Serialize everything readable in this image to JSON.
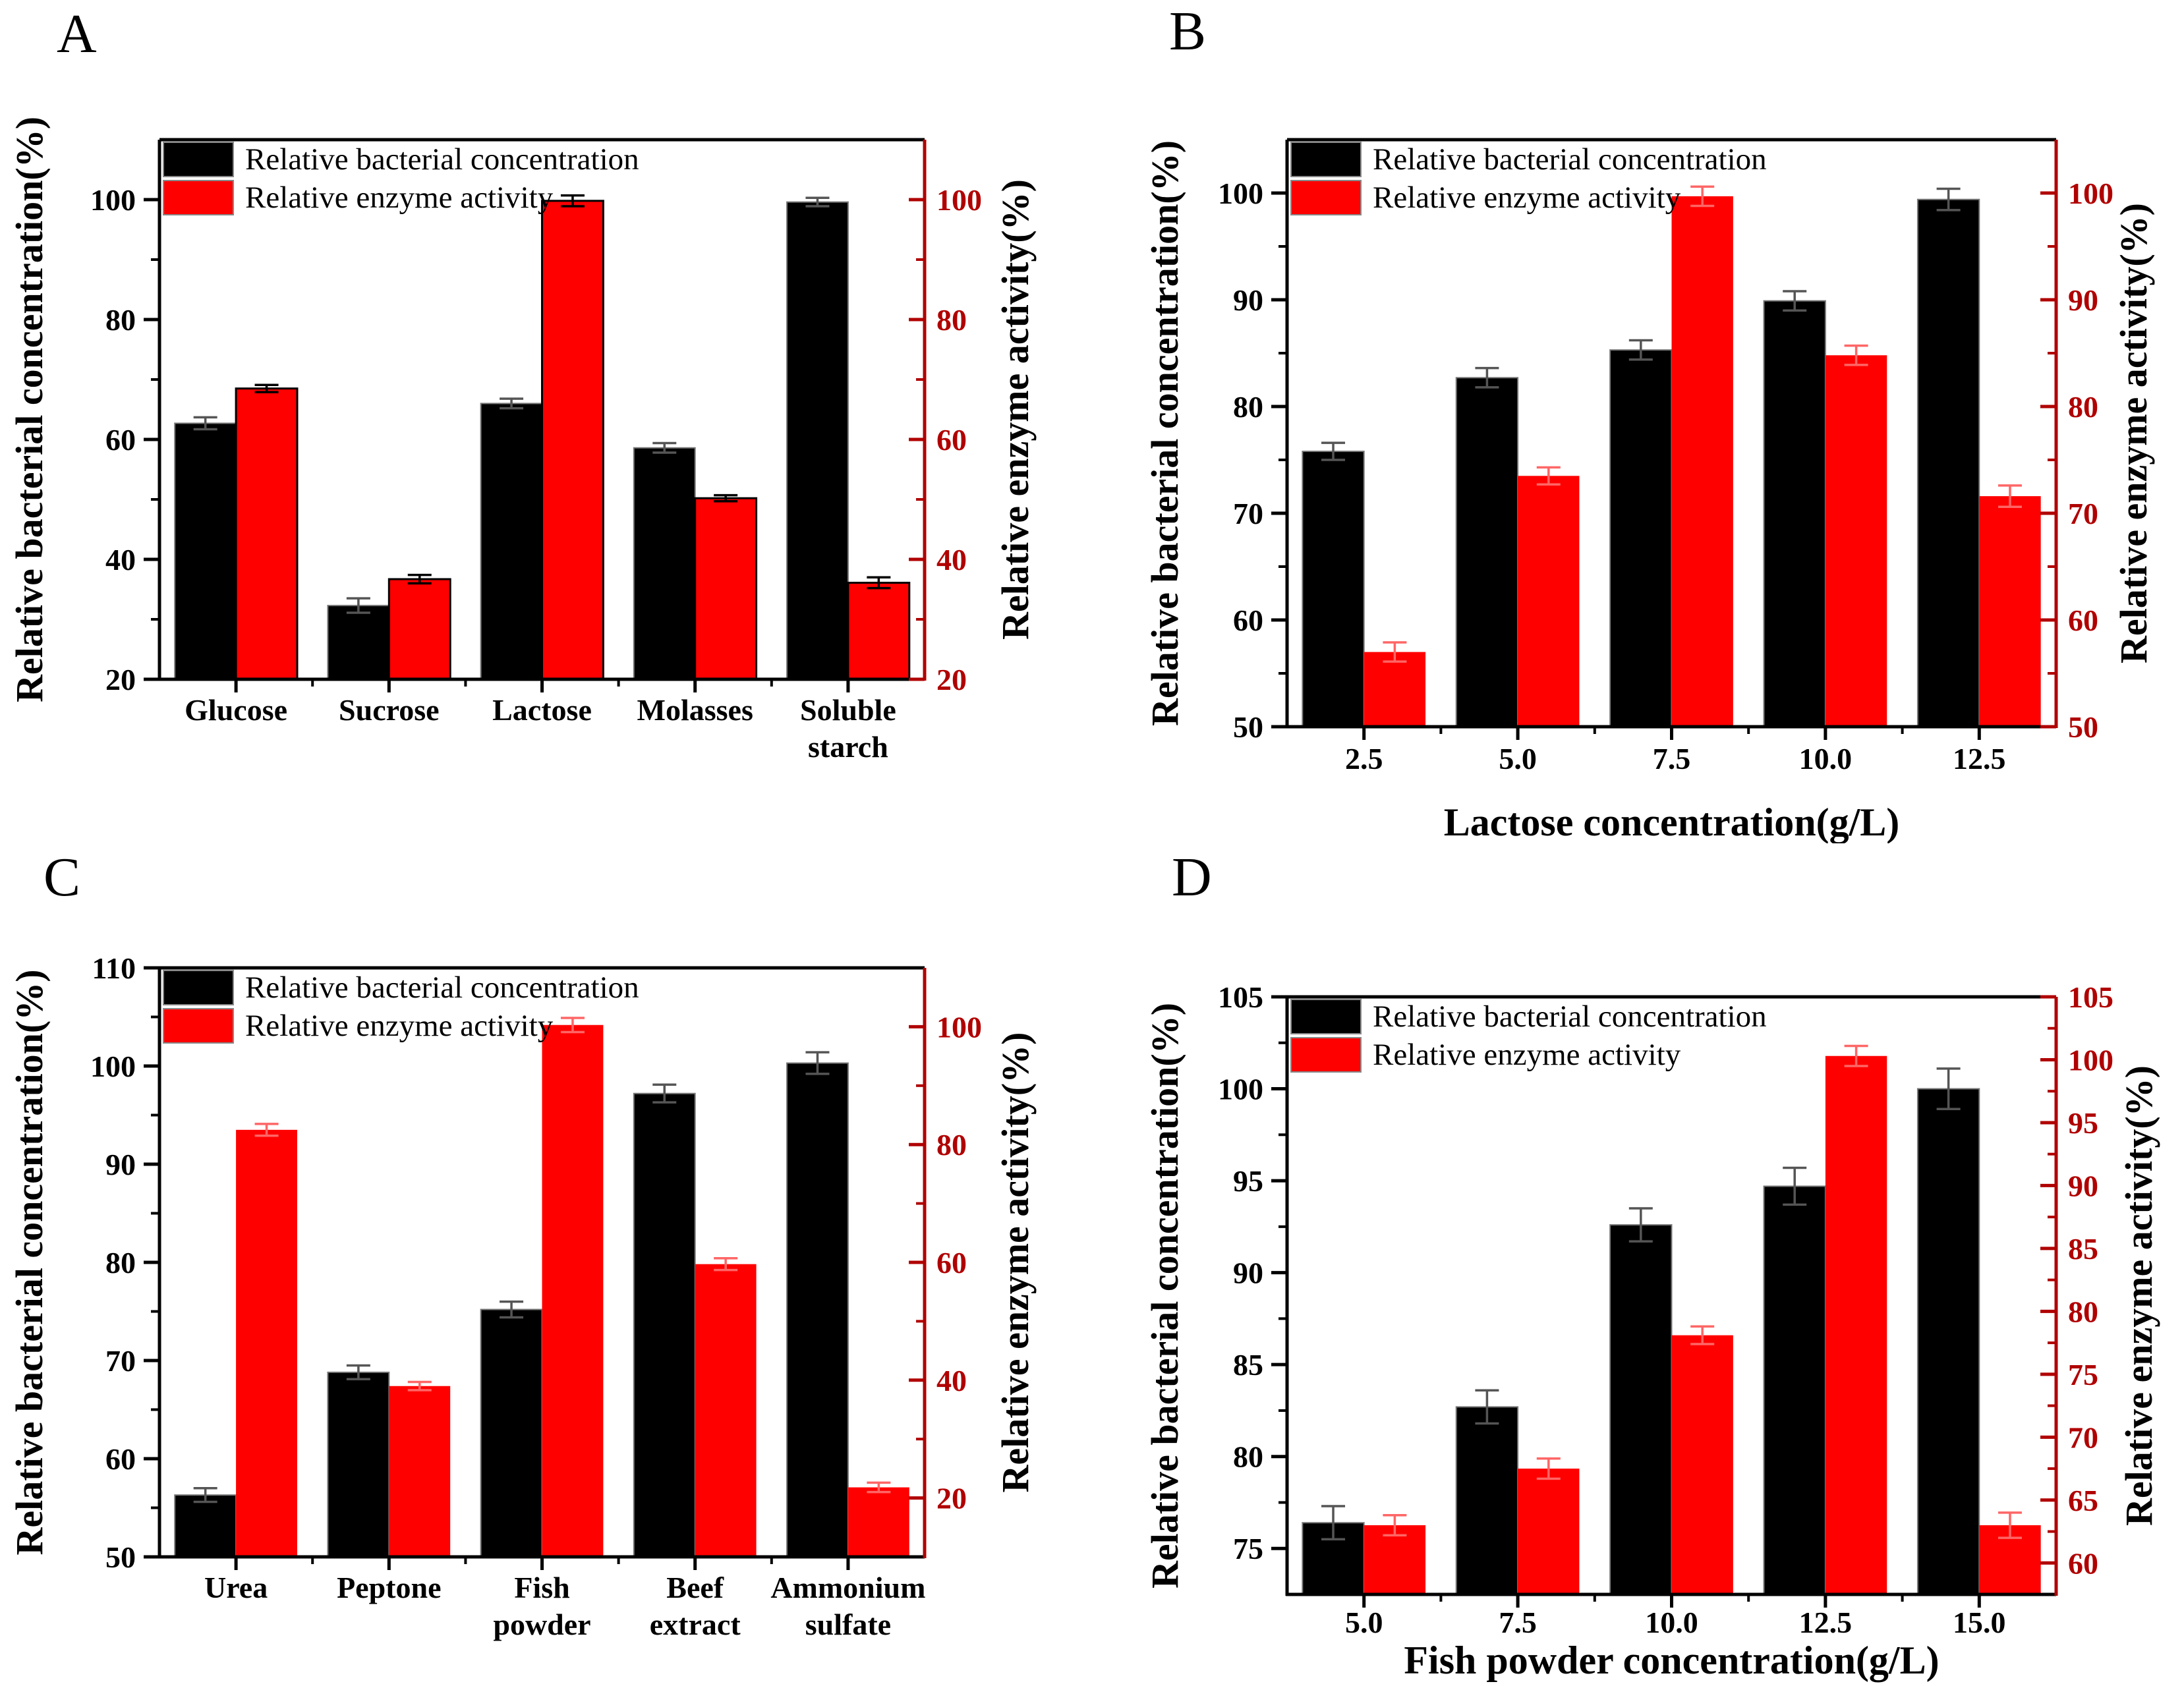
{
  "figure_background": "#ffffff",
  "chart_data": [
    {
      "panel": "A",
      "type": "bar",
      "categories": [
        "Glucose",
        "Sucrose",
        "Lactose",
        "Molasses",
        "Soluble\nstarch"
      ],
      "x_axis": {
        "label": ""
      },
      "left_axis": {
        "label": "Relative bacterial concentration(%)",
        "min": 20,
        "max": 110,
        "major_ticks": [
          20,
          40,
          60,
          80,
          100
        ],
        "minor_step": 10,
        "color": "#000000"
      },
      "right_axis": {
        "label": "Relative enzyme activity(%)",
        "min": 20,
        "max": 110,
        "major_ticks": [
          20,
          40,
          60,
          80,
          100
        ],
        "minor_step": 10,
        "color": "#b00000"
      },
      "series": [
        {
          "name": "Relative bacterial concentration",
          "axis": "left",
          "color": "#000000",
          "values": [
            62.7,
            32.3,
            66.0,
            58.6,
            99.6
          ],
          "errors": [
            1.0,
            1.2,
            0.8,
            0.8,
            0.7
          ]
        },
        {
          "name": "Relative enzyme activity",
          "axis": "right",
          "color": "#ff0000",
          "values": [
            68.5,
            36.7,
            99.8,
            50.2,
            36.1
          ],
          "errors": [
            0.6,
            0.7,
            0.9,
            0.5,
            0.9
          ]
        }
      ],
      "legend": [
        "Relative bacterial concentration",
        "Relative enzyme activity"
      ],
      "style": {
        "black_error_color": "#555555",
        "red_error_color": "#000000",
        "red_bar_border": "#000000"
      }
    },
    {
      "panel": "B",
      "type": "bar",
      "categories": [
        "2.5",
        "5.0",
        "7.5",
        "10.0",
        "12.5"
      ],
      "x_axis": {
        "label": "Lactose concentration(g/L)"
      },
      "left_axis": {
        "label": "Relative bacterial concentration(%)",
        "min": 50,
        "max": 105,
        "major_ticks": [
          50,
          60,
          70,
          80,
          90,
          100
        ],
        "minor_step": 5,
        "color": "#000000"
      },
      "right_axis": {
        "label": "Relative enzyme activity(%)",
        "min": 50,
        "max": 105,
        "major_ticks": [
          50,
          60,
          70,
          80,
          90,
          100
        ],
        "minor_step": 5,
        "color": "#b00000"
      },
      "series": [
        {
          "name": "Relative bacterial concentration",
          "axis": "left",
          "color": "#000000",
          "values": [
            75.8,
            82.7,
            85.3,
            89.9,
            99.4
          ],
          "errors": [
            0.8,
            0.9,
            0.9,
            0.9,
            1.0
          ]
        },
        {
          "name": "Relative enzyme activity",
          "axis": "right",
          "color": "#ff0000",
          "values": [
            57.0,
            73.5,
            99.7,
            84.8,
            71.6
          ],
          "errors": [
            0.9,
            0.8,
            0.9,
            0.9,
            1.0
          ]
        }
      ],
      "legend": [
        "Relative bacterial concentration",
        "Relative enzyme activity"
      ],
      "style": {
        "black_error_color": "#555555",
        "red_error_color": "#ff6666",
        "red_bar_border": null
      }
    },
    {
      "panel": "C",
      "type": "bar",
      "categories": [
        "Urea",
        "Peptone",
        "Fish\npowder",
        "Beef\nextract",
        "Ammonium\nsulfate"
      ],
      "x_axis": {
        "label": ""
      },
      "left_axis": {
        "label": "Relative bacterial concentration(%)",
        "min": 50,
        "max": 110,
        "major_ticks": [
          50,
          60,
          70,
          80,
          90,
          100,
          110
        ],
        "minor_step": 5,
        "color": "#000000"
      },
      "right_axis": {
        "label": "Relative enzyme activity(%)",
        "min": 10,
        "max": 110,
        "major_ticks": [
          20,
          40,
          60,
          80,
          100
        ],
        "minor_step": 10,
        "color": "#b00000"
      },
      "series": [
        {
          "name": "Relative bacterial concentration",
          "axis": "left",
          "color": "#000000",
          "values": [
            56.3,
            68.8,
            75.2,
            97.2,
            100.3
          ],
          "errors": [
            0.7,
            0.7,
            0.8,
            0.9,
            1.1
          ]
        },
        {
          "name": "Relative enzyme activity",
          "axis": "right",
          "color": "#ff0000",
          "values": [
            82.5,
            39.0,
            100.3,
            59.7,
            21.8
          ],
          "errors": [
            1.0,
            0.7,
            1.2,
            1.0,
            0.8
          ]
        }
      ],
      "legend": [
        "Relative bacterial concentration",
        "Relative enzyme activity"
      ],
      "style": {
        "black_error_color": "#555555",
        "red_error_color": "#ff6666",
        "red_bar_border": null
      }
    },
    {
      "panel": "D",
      "type": "bar",
      "categories": [
        "5.0",
        "7.5",
        "10.0",
        "12.5",
        "15.0"
      ],
      "x_axis": {
        "label": "Fish powder concentration(g/L)"
      },
      "left_axis": {
        "label": "Relative bacterial concentration(%)",
        "min": 72.5,
        "max": 105,
        "major_ticks": [
          75,
          80,
          85,
          90,
          95,
          100,
          105
        ],
        "minor_step": 2.5,
        "color": "#000000"
      },
      "right_axis": {
        "label": "Relative enzyme activity(%)",
        "min": 57.5,
        "max": 105,
        "major_ticks": [
          60,
          65,
          70,
          75,
          80,
          85,
          90,
          95,
          100,
          105
        ],
        "minor_step": 2.5,
        "color": "#b00000"
      },
      "series": [
        {
          "name": "Relative bacterial concentration",
          "axis": "left",
          "color": "#000000",
          "values": [
            76.4,
            82.7,
            92.6,
            94.7,
            100.0
          ],
          "errors": [
            0.9,
            0.9,
            0.9,
            1.0,
            1.1
          ]
        },
        {
          "name": "Relative enzyme activity",
          "axis": "right",
          "color": "#ff0000",
          "values": [
            63.0,
            67.5,
            78.1,
            100.3,
            63.0
          ],
          "errors": [
            0.8,
            0.8,
            0.7,
            0.8,
            1.0
          ]
        }
      ],
      "legend": [
        "Relative bacterial concentration",
        "Relative enzyme activity"
      ],
      "style": {
        "black_error_color": "#555555",
        "red_error_color": "#ff6666",
        "red_bar_border": null
      }
    }
  ]
}
